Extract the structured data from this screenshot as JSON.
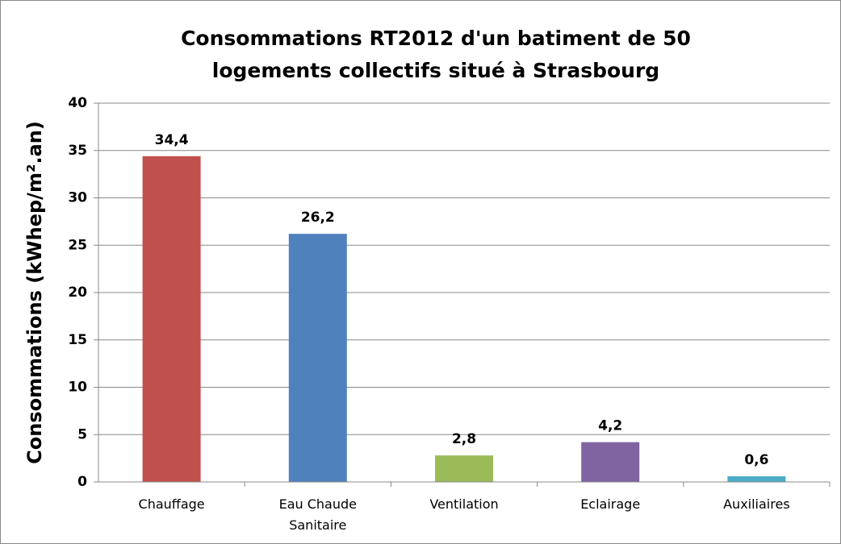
{
  "chart_data": {
    "type": "bar",
    "title": "Consommations RT2012 d'un batiment de 50 logements collectifs situé à Strasbourg",
    "y_label": "Consommations (kWhep/m².an)",
    "categories": [
      "Chauffage",
      "Eau Chaude Sanitaire",
      "Ventilation",
      "Eclairage",
      "Auxiliaires"
    ],
    "values": [
      34.4,
      26.2,
      2.8,
      4.2,
      0.6
    ],
    "value_labels": [
      "34,4",
      "26,2",
      "2,8",
      "4,2",
      "0,6"
    ],
    "colors": [
      "#c0504d",
      "#4f81bd",
      "#9bbb59",
      "#8064a2",
      "#4bacc6"
    ],
    "ylim": [
      0,
      40
    ],
    "yticks": [
      0,
      5,
      10,
      15,
      20,
      25,
      30,
      35,
      40
    ],
    "grid": true
  }
}
